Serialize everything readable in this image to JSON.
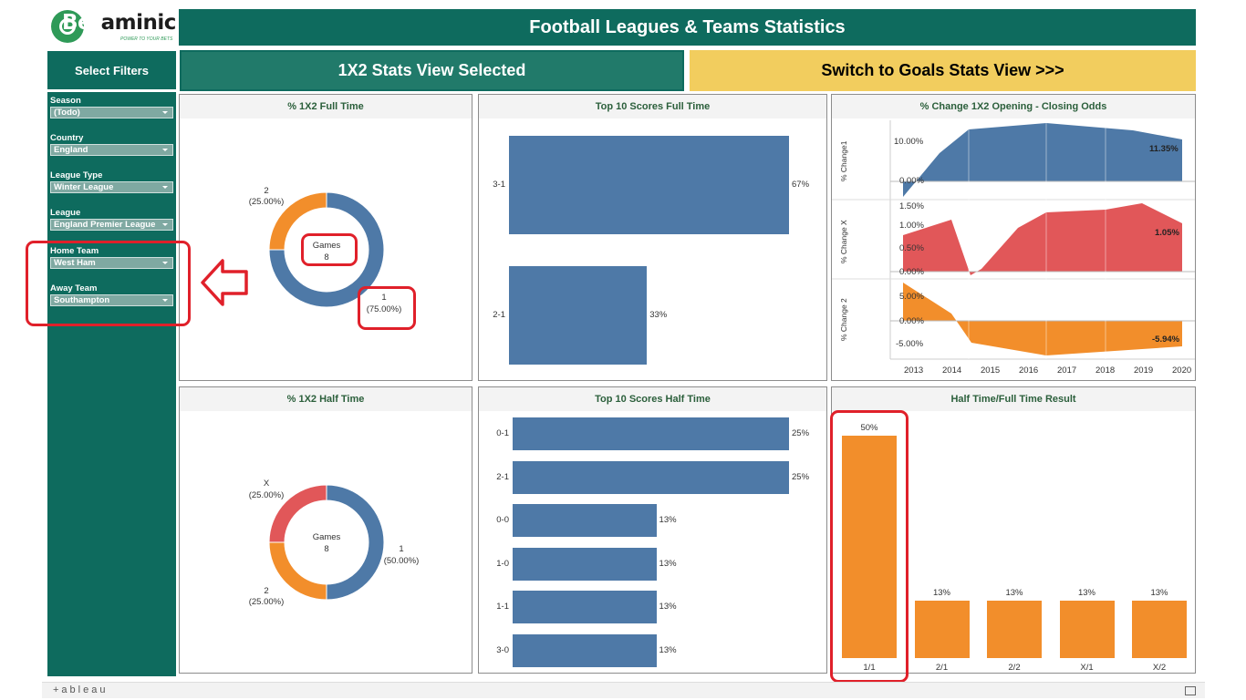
{
  "logo": {
    "brand_green": "Bet",
    "brand_dark": "aminic",
    "tagline": "POWER TO YOUR BETS"
  },
  "header": {
    "title": "Football Leagues & Teams Statistics"
  },
  "sidebar": {
    "title": "Select Filters",
    "filters": [
      {
        "label": "Season",
        "value": "(Todo)"
      },
      {
        "label": "Country",
        "value": "England"
      },
      {
        "label": "League Type",
        "value": "Winter League"
      },
      {
        "label": "League",
        "value": "England Premier League"
      },
      {
        "label": "Home Team",
        "value": "West Ham"
      },
      {
        "label": "Away Team",
        "value": "Southampton"
      }
    ]
  },
  "view_buttons": {
    "current": "1X2 Stats View Selected",
    "switch": "Switch to Goals Stats View >>>"
  },
  "panels": {
    "ft_1x2": {
      "title": "% 1X2 Full Time",
      "center_label": "Games",
      "center_value": "8",
      "slices": [
        {
          "name": "1",
          "pct": "(75.00%)",
          "value": 75,
          "color": "#4e79a7"
        },
        {
          "name": "2",
          "pct": "(25.00%)",
          "value": 25,
          "color": "#f28e2b"
        }
      ]
    },
    "ft_scores": {
      "title": "Top 10 Scores Full Time",
      "bars": [
        {
          "label": "3-1",
          "value": 67,
          "text": "67%"
        },
        {
          "label": "2-1",
          "value": 33,
          "text": "33%"
        }
      ]
    },
    "odds": {
      "title": "% Change 1X2 Opening - Closing Odds",
      "years": [
        "2013",
        "2014",
        "2015",
        "2016",
        "2017",
        "2018",
        "2019",
        "2020"
      ],
      "rows": [
        {
          "ylabel": "% Change1",
          "ticks": [
            "10.00%",
            "0.00%"
          ],
          "end_label": "11.35%",
          "color": "#4e79a7"
        },
        {
          "ylabel": "% Change X",
          "ticks": [
            "1.50%",
            "1.00%",
            "0.50%",
            "0.00%"
          ],
          "end_label": "1.05%",
          "color": "#e15759"
        },
        {
          "ylabel": "% Change 2",
          "ticks": [
            "5.00%",
            "0.00%",
            "-5.00%"
          ],
          "end_label": "-5.94%",
          "color": "#f28e2b"
        }
      ]
    },
    "ht_1x2": {
      "title": "% 1X2 Half Time",
      "center_label": "Games",
      "center_value": "8",
      "slices": [
        {
          "name": "1",
          "pct": "(50.00%)",
          "value": 50,
          "color": "#4e79a7"
        },
        {
          "name": "2",
          "pct": "(25.00%)",
          "value": 25,
          "color": "#f28e2b"
        },
        {
          "name": "X",
          "pct": "(25.00%)",
          "value": 25,
          "color": "#e15759"
        }
      ]
    },
    "ht_scores": {
      "title": "Top 10 Scores Half Time",
      "bars": [
        {
          "label": "0-1",
          "value": 25,
          "text": "25%"
        },
        {
          "label": "2-1",
          "value": 25,
          "text": "25%"
        },
        {
          "label": "0-0",
          "value": 13,
          "text": "13%"
        },
        {
          "label": "1-0",
          "value": 13,
          "text": "13%"
        },
        {
          "label": "1-1",
          "value": 13,
          "text": "13%"
        },
        {
          "label": "3-0",
          "value": 13,
          "text": "13%"
        }
      ]
    },
    "htft": {
      "title": "Half Time/Full Time Result",
      "bars": [
        {
          "label": "1/1",
          "value": 50,
          "text": "50%"
        },
        {
          "label": "2/1",
          "value": 13,
          "text": "13%"
        },
        {
          "label": "2/2",
          "value": 13,
          "text": "13%"
        },
        {
          "label": "X/1",
          "value": 13,
          "text": "13%"
        },
        {
          "label": "X/2",
          "value": 13,
          "text": "13%"
        }
      ]
    }
  },
  "footer": {
    "brand": "+ableau"
  },
  "colors": {
    "teal": "#0e6b5e",
    "gold": "#f2cd5e",
    "blue": "#4e79a7",
    "orange": "#f28e2b",
    "red": "#e15759",
    "annotation": "#e0202a"
  }
}
